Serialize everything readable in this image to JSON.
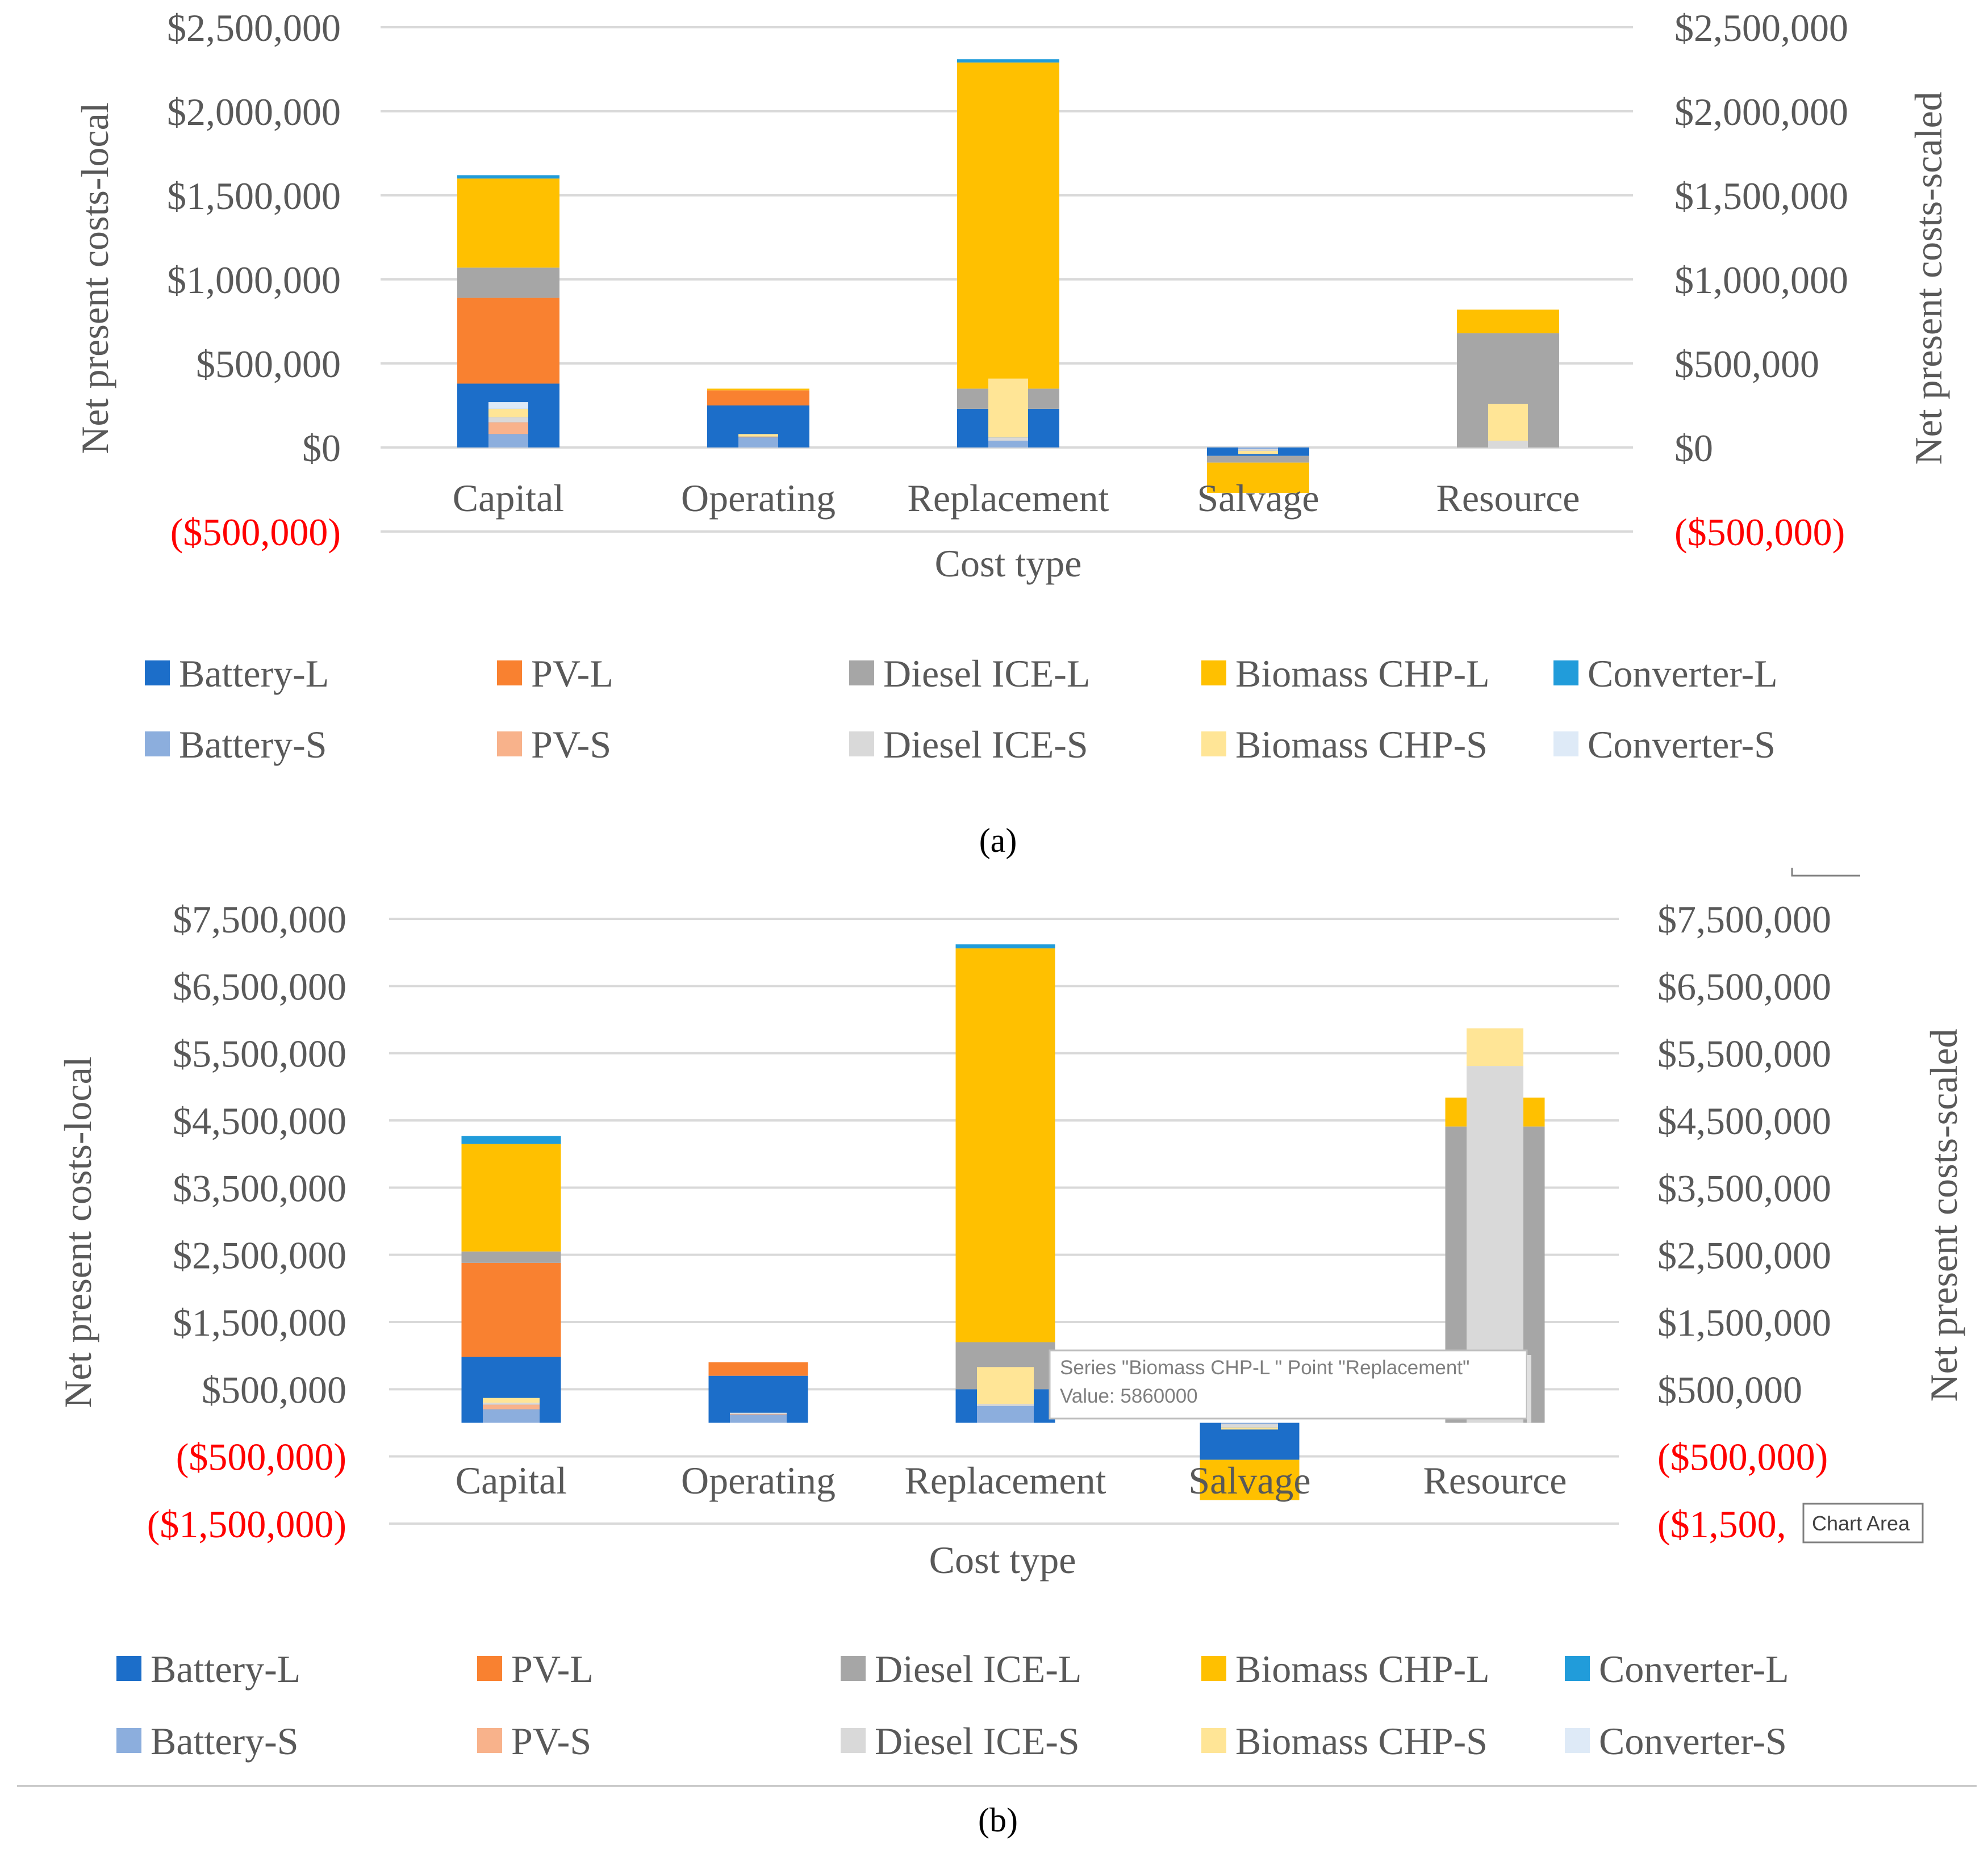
{
  "colors": {
    "Battery-L": "#1c6ec9",
    "PV-L": "#f98130",
    "Diesel ICE-L": "#a6a6a6",
    "Biomass CHP-L": "#ffc000",
    "Converter-L": "#219cda",
    "Battery-S": "#8caedd",
    "PV-S": "#f8b28b",
    "Diesel ICE-S": "#d9d9d9",
    "Biomass CHP-S": "#ffe596",
    "Converter-S": "#deeaf7",
    "negative_tick": "#ff0000",
    "text": "#595959",
    "gridline": "#d9d9d9"
  },
  "chart_data": [
    {
      "panel": "(a)",
      "type": "bar",
      "stacked": true,
      "categories": [
        "Capital",
        "Operating",
        "Replacement",
        "Salvage",
        "Resource"
      ],
      "xlabel": "Cost type",
      "ylabel_left": "Net present costs-local",
      "ylabel_right": "Net present costs-scaled",
      "ylim": [
        -500000,
        2500000
      ],
      "yticks": [
        -500000,
        0,
        500000,
        1000000,
        1500000,
        2000000,
        2500000
      ],
      "ytick_labels": [
        "($500,000)",
        "$0",
        "$500,000",
        "$1,000,000",
        "$1,500,000",
        "$2,000,000",
        "$2,500,000"
      ],
      "grid": true,
      "legend_position": "bottom",
      "series_local": [
        {
          "name": "Battery-L",
          "values": [
            380000,
            250000,
            230000,
            -50000,
            0
          ]
        },
        {
          "name": "PV-L",
          "values": [
            510000,
            90000,
            0,
            0,
            0
          ]
        },
        {
          "name": "Diesel ICE-L",
          "values": [
            180000,
            0,
            120000,
            -40000,
            680000
          ]
        },
        {
          "name": "Biomass CHP-L",
          "values": [
            530000,
            10000,
            1940000,
            -180000,
            140000
          ]
        },
        {
          "name": "Converter-L",
          "values": [
            20000,
            0,
            20000,
            0,
            0
          ]
        }
      ],
      "series_scaled": [
        {
          "name": "Battery-S",
          "values": [
            80000,
            60000,
            40000,
            -10000,
            0
          ]
        },
        {
          "name": "PV-S",
          "values": [
            70000,
            5000,
            0,
            0,
            0
          ]
        },
        {
          "name": "Diesel ICE-S",
          "values": [
            30000,
            0,
            20000,
            -10000,
            40000
          ]
        },
        {
          "name": "Biomass CHP-S",
          "values": [
            50000,
            15000,
            350000,
            -20000,
            220000
          ]
        },
        {
          "name": "Converter-S",
          "values": [
            40000,
            0,
            0,
            0,
            0
          ]
        }
      ]
    },
    {
      "panel": "(b)",
      "type": "bar",
      "stacked": true,
      "categories": [
        "Capital",
        "Operating",
        "Replacement",
        "Salvage",
        "Resource"
      ],
      "xlabel": "Cost type",
      "ylabel_left": "Net present costs-local",
      "ylabel_right": "Net present costs-scaled",
      "ylim": [
        -1500000,
        7500000
      ],
      "yticks": [
        -1500000,
        -500000,
        500000,
        1500000,
        2500000,
        3500000,
        4500000,
        5500000,
        6500000,
        7500000
      ],
      "ytick_labels": [
        "($1,500,000)",
        "($500,000)",
        "$500,000",
        "$1,500,000",
        "$2,500,000",
        "$3,500,000",
        "$4,500,000",
        "$5,500,000",
        "$6,500,000",
        "$7,500,000"
      ],
      "grid": true,
      "legend_position": "bottom",
      "series_local": [
        {
          "name": "Battery-L",
          "values": [
            980000,
            700000,
            500000,
            -550000,
            0
          ]
        },
        {
          "name": "PV-L",
          "values": [
            1400000,
            200000,
            0,
            0,
            0
          ]
        },
        {
          "name": "Diesel ICE-L",
          "values": [
            170000,
            0,
            700000,
            0,
            4410000
          ]
        },
        {
          "name": "Biomass CHP-L",
          "values": [
            1600000,
            0,
            5860000,
            -600000,
            430000
          ]
        },
        {
          "name": "Converter-L",
          "values": [
            120000,
            0,
            60000,
            0,
            0
          ]
        }
      ],
      "series_scaled": [
        {
          "name": "Battery-S",
          "values": [
            200000,
            120000,
            250000,
            -20000,
            0
          ]
        },
        {
          "name": "PV-S",
          "values": [
            70000,
            10000,
            0,
            0,
            0
          ]
        },
        {
          "name": "Diesel ICE-S",
          "values": [
            30000,
            20000,
            30000,
            -50000,
            5310000
          ]
        },
        {
          "name": "Biomass CHP-S",
          "values": [
            70000,
            0,
            550000,
            -30000,
            560000
          ]
        },
        {
          "name": "Converter-S",
          "values": [
            0,
            0,
            0,
            0,
            0
          ]
        }
      ],
      "tooltip": {
        "line1": "Series \"Biomass CHP-L \" Point \"Replacement\"",
        "line2": "Value: 5860000"
      },
      "chart_area_label": "Chart Area",
      "truncated_right_label": "($1,500,"
    }
  ],
  "legend": {
    "row1": [
      "Battery-L",
      "PV-L",
      "Diesel ICE-L",
      "Biomass CHP-L",
      "Converter-L"
    ],
    "row2": [
      "Battery-S",
      "PV-S",
      "Diesel ICE-S",
      "Biomass CHP-S",
      "Converter-S"
    ]
  },
  "captions": {
    "a": "(a)",
    "b": "(b)"
  }
}
